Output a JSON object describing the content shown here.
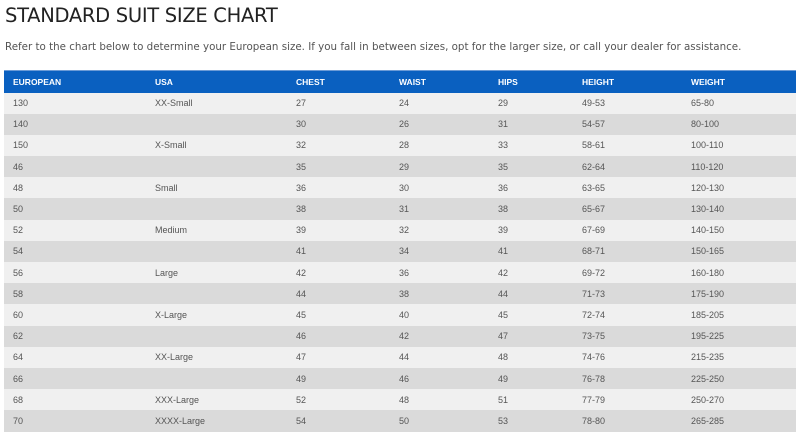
{
  "title": "STANDARD SUIT SIZE CHART",
  "intro": "Refer to the chart below to determine your European size. If you fall in between sizes, opt for the larger size, or call your dealer for assistance.",
  "colors": {
    "header_bg": "#0a60c0",
    "row_odd": "#f0f0f0",
    "row_even": "#dadada"
  },
  "table": {
    "headers": [
      "EUROPEAN",
      "USA",
      "CHEST",
      "WAIST",
      "HIPS",
      "HEIGHT",
      "WEIGHT"
    ],
    "rows": [
      [
        "130",
        "XX-Small",
        "27",
        "24",
        "29",
        "49-53",
        "65-80"
      ],
      [
        "140",
        "",
        "30",
        "26",
        "31",
        "54-57",
        "80-100"
      ],
      [
        "150",
        "X-Small",
        "32",
        "28",
        "33",
        "58-61",
        "100-110"
      ],
      [
        "46",
        "",
        "35",
        "29",
        "35",
        "62-64",
        "110-120"
      ],
      [
        "48",
        "Small",
        "36",
        "30",
        "36",
        "63-65",
        "120-130"
      ],
      [
        "50",
        "",
        "38",
        "31",
        "38",
        "65-67",
        "130-140"
      ],
      [
        "52",
        "Medium",
        "39",
        "32",
        "39",
        "67-69",
        "140-150"
      ],
      [
        "54",
        "",
        "41",
        "34",
        "41",
        "68-71",
        "150-165"
      ],
      [
        "56",
        "Large",
        "42",
        "36",
        "42",
        "69-72",
        "160-180"
      ],
      [
        "58",
        "",
        "44",
        "38",
        "44",
        "71-73",
        "175-190"
      ],
      [
        "60",
        "X-Large",
        "45",
        "40",
        "45",
        "72-74",
        "185-205"
      ],
      [
        "62",
        "",
        "46",
        "42",
        "47",
        "73-75",
        "195-225"
      ],
      [
        "64",
        "XX-Large",
        "47",
        "44",
        "48",
        "74-76",
        "215-235"
      ],
      [
        "66",
        "",
        "49",
        "46",
        "49",
        "76-78",
        "225-250"
      ],
      [
        "68",
        "XXX-Large",
        "52",
        "48",
        "51",
        "77-79",
        "250-270"
      ],
      [
        "70",
        "XXXX-Large",
        "54",
        "50",
        "53",
        "78-80",
        "265-285"
      ]
    ]
  }
}
